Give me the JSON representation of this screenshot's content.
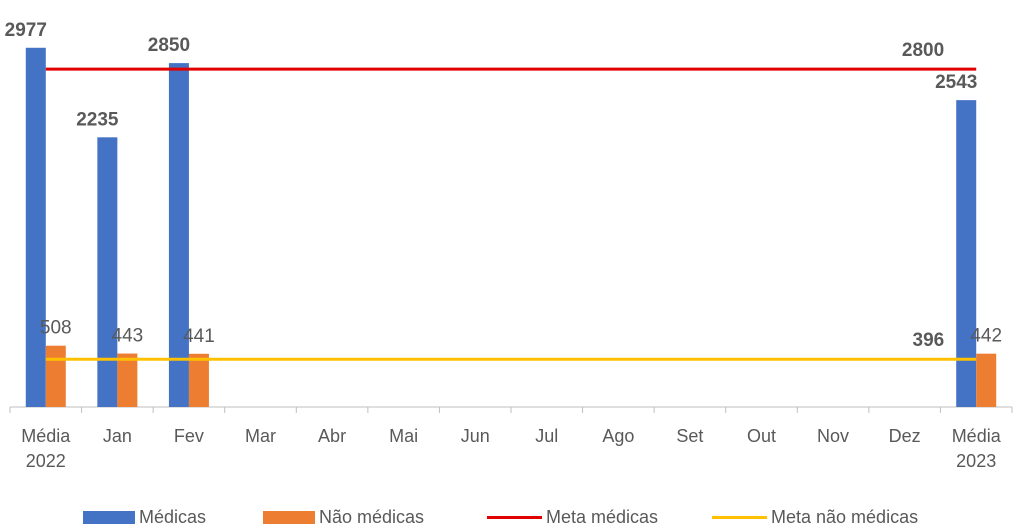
{
  "chart_data": {
    "type": "bar",
    "categories": [
      "Média 2022",
      "Jan",
      "Fev",
      "Mar",
      "Abr",
      "Mai",
      "Jun",
      "Jul",
      "Ago",
      "Set",
      "Out",
      "Nov",
      "Dez",
      "Média 2023"
    ],
    "ylim": [
      0,
      3000
    ],
    "series": [
      {
        "name": "Médicas",
        "type": "bar",
        "color": "#4472c4",
        "values": [
          2977,
          2235,
          2850,
          null,
          null,
          null,
          null,
          null,
          null,
          null,
          null,
          null,
          null,
          2543
        ]
      },
      {
        "name": "Não médicas",
        "type": "bar",
        "color": "#ed7d31",
        "values": [
          508,
          443,
          441,
          null,
          null,
          null,
          null,
          null,
          null,
          null,
          null,
          null,
          null,
          442
        ]
      },
      {
        "name": "Meta médicas",
        "type": "line",
        "color": "#e00000",
        "values": [
          2800,
          2800,
          2800,
          2800,
          2800,
          2800,
          2800,
          2800,
          2800,
          2800,
          2800,
          2800,
          2800,
          2800
        ]
      },
      {
        "name": "Meta não médicas",
        "type": "line",
        "color": "#ffc000",
        "values": [
          396,
          396,
          396,
          396,
          396,
          396,
          396,
          396,
          396,
          396,
          396,
          396,
          396,
          396
        ]
      }
    ]
  }
}
